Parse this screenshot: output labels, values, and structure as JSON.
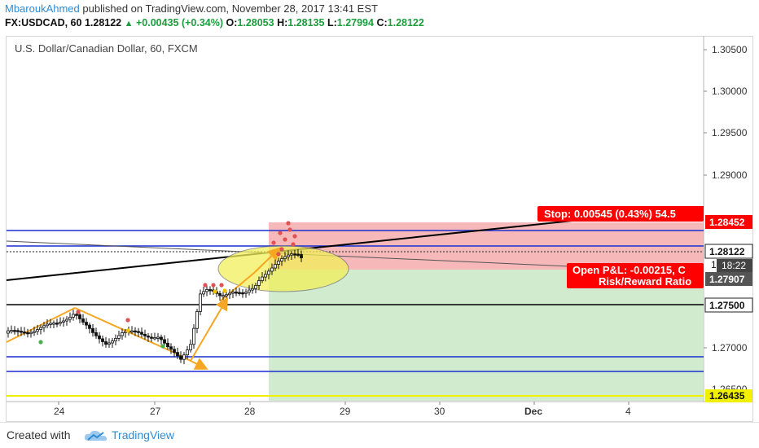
{
  "header": {
    "author": "MbaroukAhmed",
    "published_text": "published on TradingView.com, November 28, 2017 13:41 EST",
    "symbol": "FX:USDCAD, 60",
    "last": "1.28122",
    "change": "+0.00435 (+0.34%)",
    "open_label": "O:",
    "open": "1.28053",
    "high_label": "H:",
    "high": "1.28135",
    "low_label": "L:",
    "low": "1.27994",
    "close_label": "C:",
    "close": "1.28122"
  },
  "chart": {
    "title": "U.S. Dollar/Canadian Dollar, 60, FXCM",
    "price_ticks": [
      "1.30500",
      "1.30000",
      "1.29500",
      "1.29000",
      "1.27000",
      "1.26500"
    ],
    "time_ticks": [
      "24",
      "27",
      "28",
      "29",
      "30",
      "Dec",
      "4"
    ],
    "price_tags": {
      "stop": "1.28452",
      "last": "1.28122",
      "countdown_prefix": "1",
      "countdown": "18:22",
      "entry": "1.27907",
      "level": "1.27500",
      "target": "1.26435"
    },
    "stop_label": "Stop: 0.00545 (0.43%) 54.5",
    "pnl_line1": "Open P&L: -0.00215, C",
    "pnl_line2": "Risk/Reward Ratio",
    "colors": {
      "up": "#1b9e3e",
      "stop_red": "#ff0000",
      "risk_zone": "#f4a6a6",
      "reward_zone": "#c9e8c6",
      "channel_blue": "#1a2fd1",
      "arrow_orange": "#f5a623",
      "highlight_yellow": "#f2f05a",
      "target_yellow": "#f0f000"
    }
  },
  "footer": {
    "created_with": "Created with",
    "brand": "TradingView"
  }
}
